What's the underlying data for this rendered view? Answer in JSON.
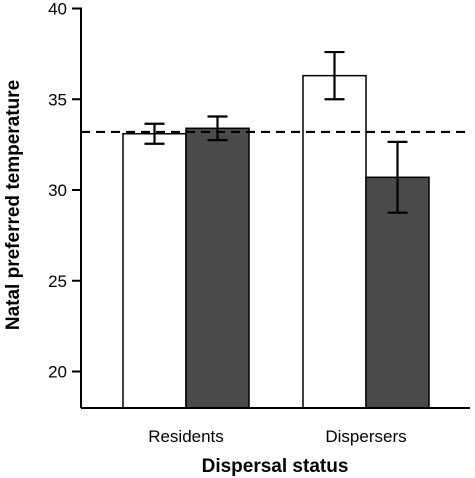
{
  "chart_data": {
    "type": "bar",
    "xlabel": "Dispersal status",
    "ylabel": "Natal preferred temperature",
    "categories": [
      "Residents",
      "Dispersers"
    ],
    "ylim": [
      18,
      40
    ],
    "yticks": [
      "20",
      "25",
      "30",
      "35",
      "40"
    ],
    "grid": false,
    "legend": "none",
    "reference_line": {
      "value": 33.2,
      "style": "dashed"
    },
    "series": [
      {
        "color": "#ffffff",
        "values": [
          33.1,
          36.3
        ],
        "errors": [
          0.55,
          1.3
        ]
      },
      {
        "color": "#4a4a4a",
        "values": [
          33.4,
          30.7
        ],
        "errors": [
          0.65,
          1.95
        ]
      }
    ]
  }
}
